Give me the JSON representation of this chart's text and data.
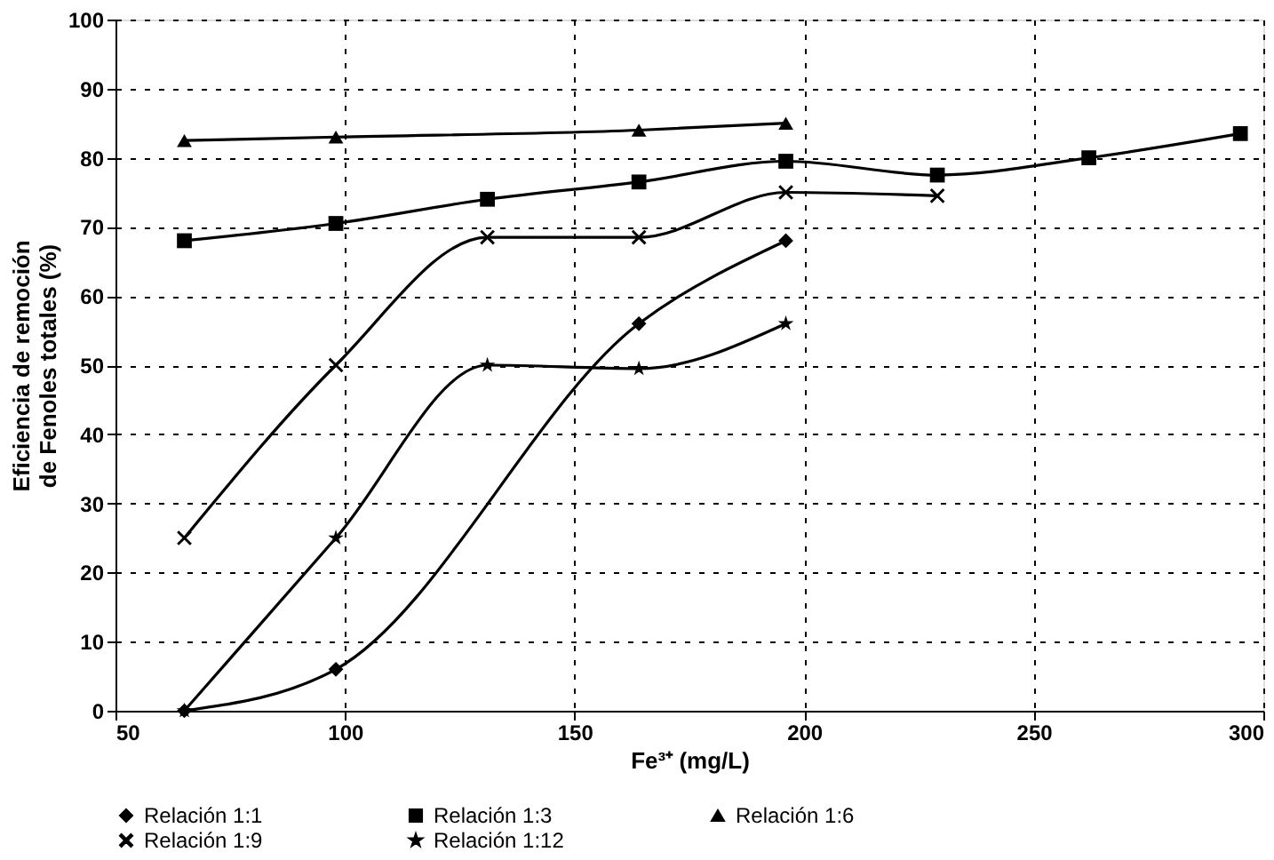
{
  "chart_data": {
    "type": "line",
    "xlabel": "Fe³⁺ (mg/L)",
    "ylabel": "Eficiencia de remoción de Fenoles totales (%)",
    "xlim": [
      50,
      300
    ],
    "xticks": [
      50,
      100,
      150,
      200,
      250,
      300
    ],
    "ylim": [
      0,
      100
    ],
    "yticks": [
      0,
      10,
      20,
      30,
      40,
      50,
      60,
      70,
      80,
      90,
      100
    ],
    "grid": true,
    "legend": "bottom",
    "line_style": "solid",
    "series": [
      {
        "name": "Relación 1:1",
        "color": "#000000",
        "marker": "diamond",
        "x": [
          65,
          98,
          164,
          196
        ],
        "values": [
          0,
          6,
          56,
          68
        ]
      },
      {
        "name": "Relación 1:3",
        "color": "#000000",
        "marker": "square",
        "x": [
          65,
          98,
          131,
          164,
          196,
          229,
          262,
          295
        ],
        "values": [
          68,
          70.5,
          74,
          76.5,
          79.5,
          77.5,
          80,
          83.5
        ]
      },
      {
        "name": "Relación 1:6",
        "color": "#000000",
        "marker": "triangle",
        "x": [
          65,
          98,
          164,
          196
        ],
        "values": [
          82.5,
          83,
          84,
          85
        ]
      },
      {
        "name": "Relación 1:9",
        "color": "#000000",
        "marker": "cross",
        "x": [
          65,
          98,
          131,
          164,
          196,
          229
        ],
        "values": [
          25,
          50,
          68.5,
          68.5,
          75,
          74.5
        ]
      },
      {
        "name": "Relación 1:12",
        "color": "#000000",
        "marker": "star",
        "x": [
          65,
          98,
          131,
          164,
          196
        ],
        "values": [
          0,
          25,
          50,
          49.5,
          56
        ]
      }
    ]
  }
}
